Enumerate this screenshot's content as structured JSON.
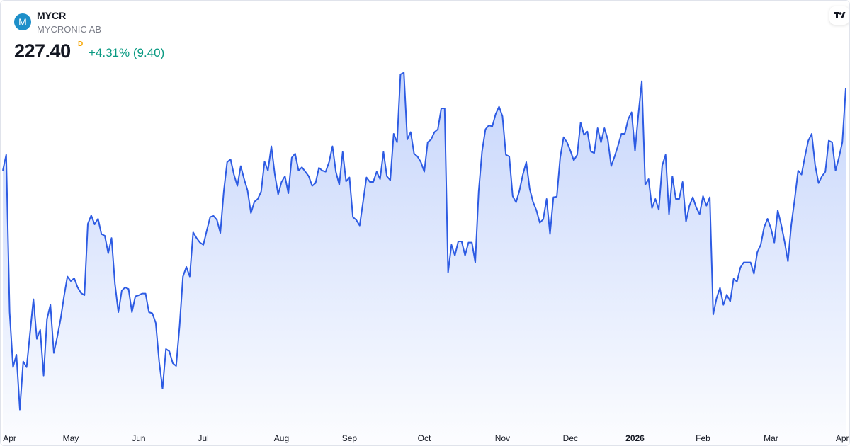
{
  "header": {
    "logo": "M",
    "symbol": "MYCR",
    "name": "MYCRONIC AB",
    "price": "227.40",
    "interval": "D",
    "change": "+4.31% (9.40)"
  },
  "chart_data": {
    "type": "area",
    "xlim": [
      0,
      248
    ],
    "xticks": [
      {
        "value": 2,
        "label": "Apr"
      },
      {
        "value": 20,
        "label": "May"
      },
      {
        "value": 40,
        "label": "Jun"
      },
      {
        "value": 59,
        "label": "Jul"
      },
      {
        "value": 82,
        "label": "Aug"
      },
      {
        "value": 102,
        "label": "Sep"
      },
      {
        "value": 124,
        "label": "Oct"
      },
      {
        "value": 147,
        "label": "Nov"
      },
      {
        "value": 167,
        "label": "Dec"
      },
      {
        "value": 186,
        "label": "2026",
        "bold": true
      },
      {
        "value": 206,
        "label": "Feb"
      },
      {
        "value": 226,
        "label": "Mar"
      },
      {
        "value": 247,
        "label": "Apr"
      }
    ],
    "ylim": [
      167.9,
      242.9
    ],
    "series": [
      {
        "name": "MYCR",
        "color": "#2d5be3",
        "values": [
          212.9,
          215.7,
          187.9,
          178.2,
          180.4,
          170.7,
          179.2,
          178.2,
          184.2,
          190.2,
          183.2,
          184.8,
          176.7,
          186.7,
          189.2,
          180.7,
          183.5,
          186.7,
          190.7,
          194.2,
          193.4,
          193.9,
          192.3,
          191.3,
          190.9,
          203.5,
          205.0,
          203.4,
          204.4,
          201.7,
          201.4,
          198.3,
          201.0,
          192.9,
          187.9,
          191.7,
          192.3,
          192.0,
          187.9,
          190.7,
          190.9,
          191.2,
          191.2,
          187.9,
          187.7,
          186.0,
          179.2,
          174.4,
          181.4,
          181.0,
          178.9,
          178.4,
          185.4,
          194.2,
          195.9,
          194.2,
          202.0,
          201.0,
          200.2,
          199.8,
          202.3,
          204.7,
          204.9,
          204.2,
          201.9,
          209.2,
          214.4,
          214.9,
          212.2,
          210.2,
          213.7,
          211.4,
          209.4,
          205.4,
          207.4,
          207.9,
          209.2,
          214.5,
          212.9,
          217.2,
          212.3,
          208.7,
          210.9,
          211.9,
          208.9,
          215.2,
          215.9,
          212.9,
          213.5,
          212.7,
          211.9,
          210.2,
          210.7,
          213.4,
          212.9,
          212.7,
          214.4,
          217.2,
          212.7,
          210.4,
          216.2,
          211.0,
          211.7,
          204.7,
          204.2,
          203.2,
          207.4,
          211.7,
          210.9,
          210.9,
          212.7,
          211.4,
          216.2,
          211.9,
          211.2,
          219.4,
          217.9,
          229.9,
          230.2,
          218.4,
          219.7,
          215.9,
          215.4,
          214.4,
          212.7,
          217.9,
          218.4,
          219.7,
          220.2,
          223.9,
          223.9,
          194.9,
          199.8,
          197.9,
          200.4,
          200.4,
          197.9,
          200.2,
          200.2,
          196.7,
          209.2,
          216.3,
          220.2,
          220.9,
          220.7,
          222.9,
          224.2,
          222.5,
          215.7,
          215.4,
          208.4,
          207.3,
          209.4,
          212.2,
          214.4,
          209.7,
          207.4,
          205.9,
          203.7,
          204.3,
          207.9,
          201.7,
          208.2,
          208.3,
          215.2,
          218.8,
          217.9,
          216.4,
          214.7,
          215.7,
          221.4,
          219.2,
          219.8,
          216.3,
          216.0,
          220.4,
          217.9,
          220.4,
          218.4,
          213.7,
          215.4,
          217.3,
          219.4,
          219.4,
          222.0,
          223.2,
          216.4,
          222.9,
          228.7,
          210.4,
          211.4,
          206.3,
          207.9,
          206.0,
          213.8,
          215.7,
          205.2,
          211.9,
          207.9,
          207.9,
          210.9,
          203.9,
          206.7,
          208.2,
          206.4,
          205.2,
          208.4,
          206.7,
          208.2,
          187.5,
          190.4,
          192.2,
          189.2,
          191.0,
          189.8,
          193.8,
          193.3,
          195.8,
          196.7,
          196.7,
          196.7,
          194.7,
          198.5,
          199.8,
          202.9,
          204.4,
          202.7,
          200.2,
          205.9,
          203.4,
          200.4,
          196.9,
          203.4,
          207.9,
          212.9,
          212.2,
          215.4,
          218.2,
          219.4,
          213.9,
          210.7,
          211.9,
          212.7,
          218.2,
          217.9,
          212.9,
          215.2,
          217.9,
          227.4
        ]
      }
    ]
  }
}
